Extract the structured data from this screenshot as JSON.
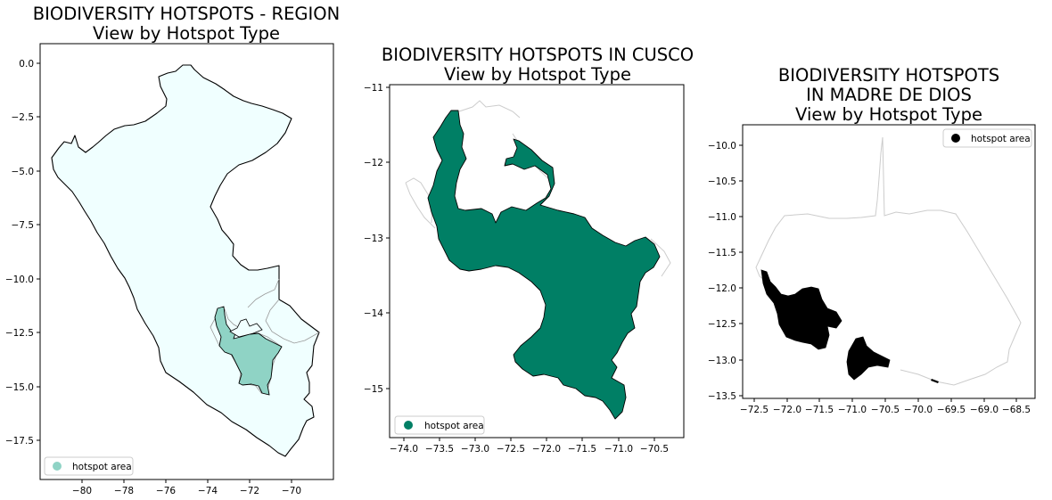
{
  "figure": {
    "panels": [
      {
        "title_lines": [
          "BIODIVERSITY HOTSPOTS - REGION",
          "View by Hotspot Type"
        ],
        "legend_label": "hotspot area",
        "legend_placement": "lower-left",
        "x_ticks": [
          "−80",
          "−78",
          "−76",
          "−74",
          "−72",
          "−70"
        ],
        "y_ticks": [
          "0.0",
          "−2.5",
          "−5.0",
          "−7.5",
          "−10.0",
          "−12.5",
          "−15.0",
          "−17.5"
        ],
        "colors": {
          "country_fill": "#F0FFFF",
          "hotspot_fill": "#8FD3C5",
          "outline": "#000000"
        }
      },
      {
        "title_lines": [
          "BIODIVERSITY HOTSPOTS IN CUSCO",
          "View by Hotspot Type"
        ],
        "legend_label": "hotspot area",
        "legend_placement": "lower-left",
        "x_ticks": [
          "−74.0",
          "−73.5",
          "−73.0",
          "−72.5",
          "−72.0",
          "−71.5",
          "−71.0",
          "−70.5"
        ],
        "y_ticks": [
          "−11",
          "−12",
          "−13",
          "−14",
          "−15"
        ],
        "colors": {
          "hotspot_fill": "#007F65",
          "boundary": "#CCCCCC"
        }
      },
      {
        "title_lines": [
          "BIODIVERSITY HOTSPOTS",
          "IN MADRE DE DIOS",
          "View by Hotspot Type"
        ],
        "legend_label": "hotspot area",
        "legend_placement": "top-right",
        "x_ticks": [
          "−72.5",
          "−72.0",
          "−71.5",
          "−71.0",
          "−70.5",
          "−70.0",
          "−69.5",
          "−69.0",
          "−68.5"
        ],
        "y_ticks": [
          "−10.0",
          "−10.5",
          "−11.0",
          "−11.5",
          "−12.0",
          "−12.5",
          "−13.0",
          "−13.5"
        ],
        "colors": {
          "hotspot_fill": "#000000",
          "boundary": "#CCCCCC"
        }
      }
    ]
  }
}
